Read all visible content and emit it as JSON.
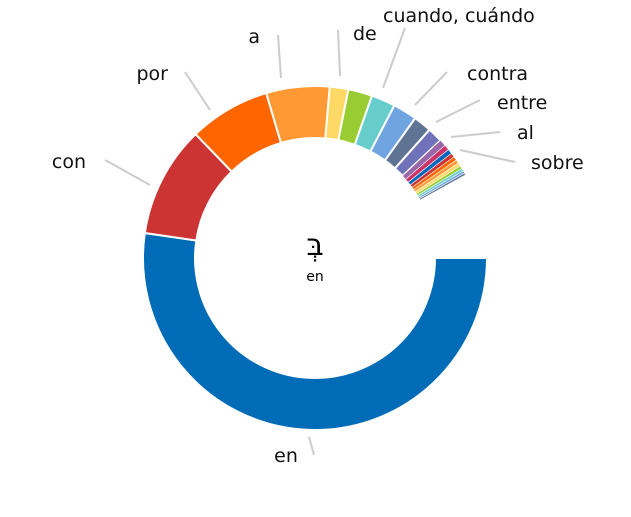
{
  "chart_data": {
    "type": "pie",
    "variant": "donut",
    "center_text": {
      "glyph": "בְּ",
      "gloss": "en"
    },
    "slices": [
      {
        "label": "de",
        "value": 11,
        "color": "#FFD966"
      },
      {
        "label": "cuando, cuándo",
        "value": 8,
        "color": "#99CC33"
      },
      {
        "label": "contra",
        "value": 8,
        "color": "#66CCCC"
      },
      {
        "label": "entre",
        "value": 8,
        "color": "#6FA4E0"
      },
      {
        "label": "al",
        "value": 6,
        "color": "#5F7392"
      },
      {
        "label": "sobre",
        "value": 5,
        "color": "#6F72B8"
      },
      {
        "label": "",
        "value": 2.2,
        "color": "#9966AA"
      },
      {
        "label": "",
        "value": 1.8,
        "color": "#CC3366"
      },
      {
        "label": "",
        "value": 1.6,
        "color": "#0066BB"
      },
      {
        "label": "",
        "value": 1.4,
        "color": "#CC3333"
      },
      {
        "label": "",
        "value": 1.3,
        "color": "#FF6600"
      },
      {
        "label": "",
        "value": 1.2,
        "color": "#FF9933"
      },
      {
        "label": "",
        "value": 1.1,
        "color": "#FFD966"
      },
      {
        "label": "",
        "value": 1.0,
        "color": "#99CC33"
      },
      {
        "label": "",
        "value": 0.9,
        "color": "#66CCCC"
      },
      {
        "label": "",
        "value": 0.8,
        "color": "#6FA4E0"
      },
      {
        "label": "",
        "value": 0.7,
        "color": "#5F7392"
      },
      {
        "label": "en",
        "value": 185,
        "color": "#006BB6"
      },
      {
        "label": "con",
        "value": 37,
        "color": "#CC3333"
      },
      {
        "label": "por",
        "value": 27,
        "color": "#FF6600"
      },
      {
        "label": "a",
        "value": 21,
        "color": "#FF9933"
      }
    ]
  }
}
